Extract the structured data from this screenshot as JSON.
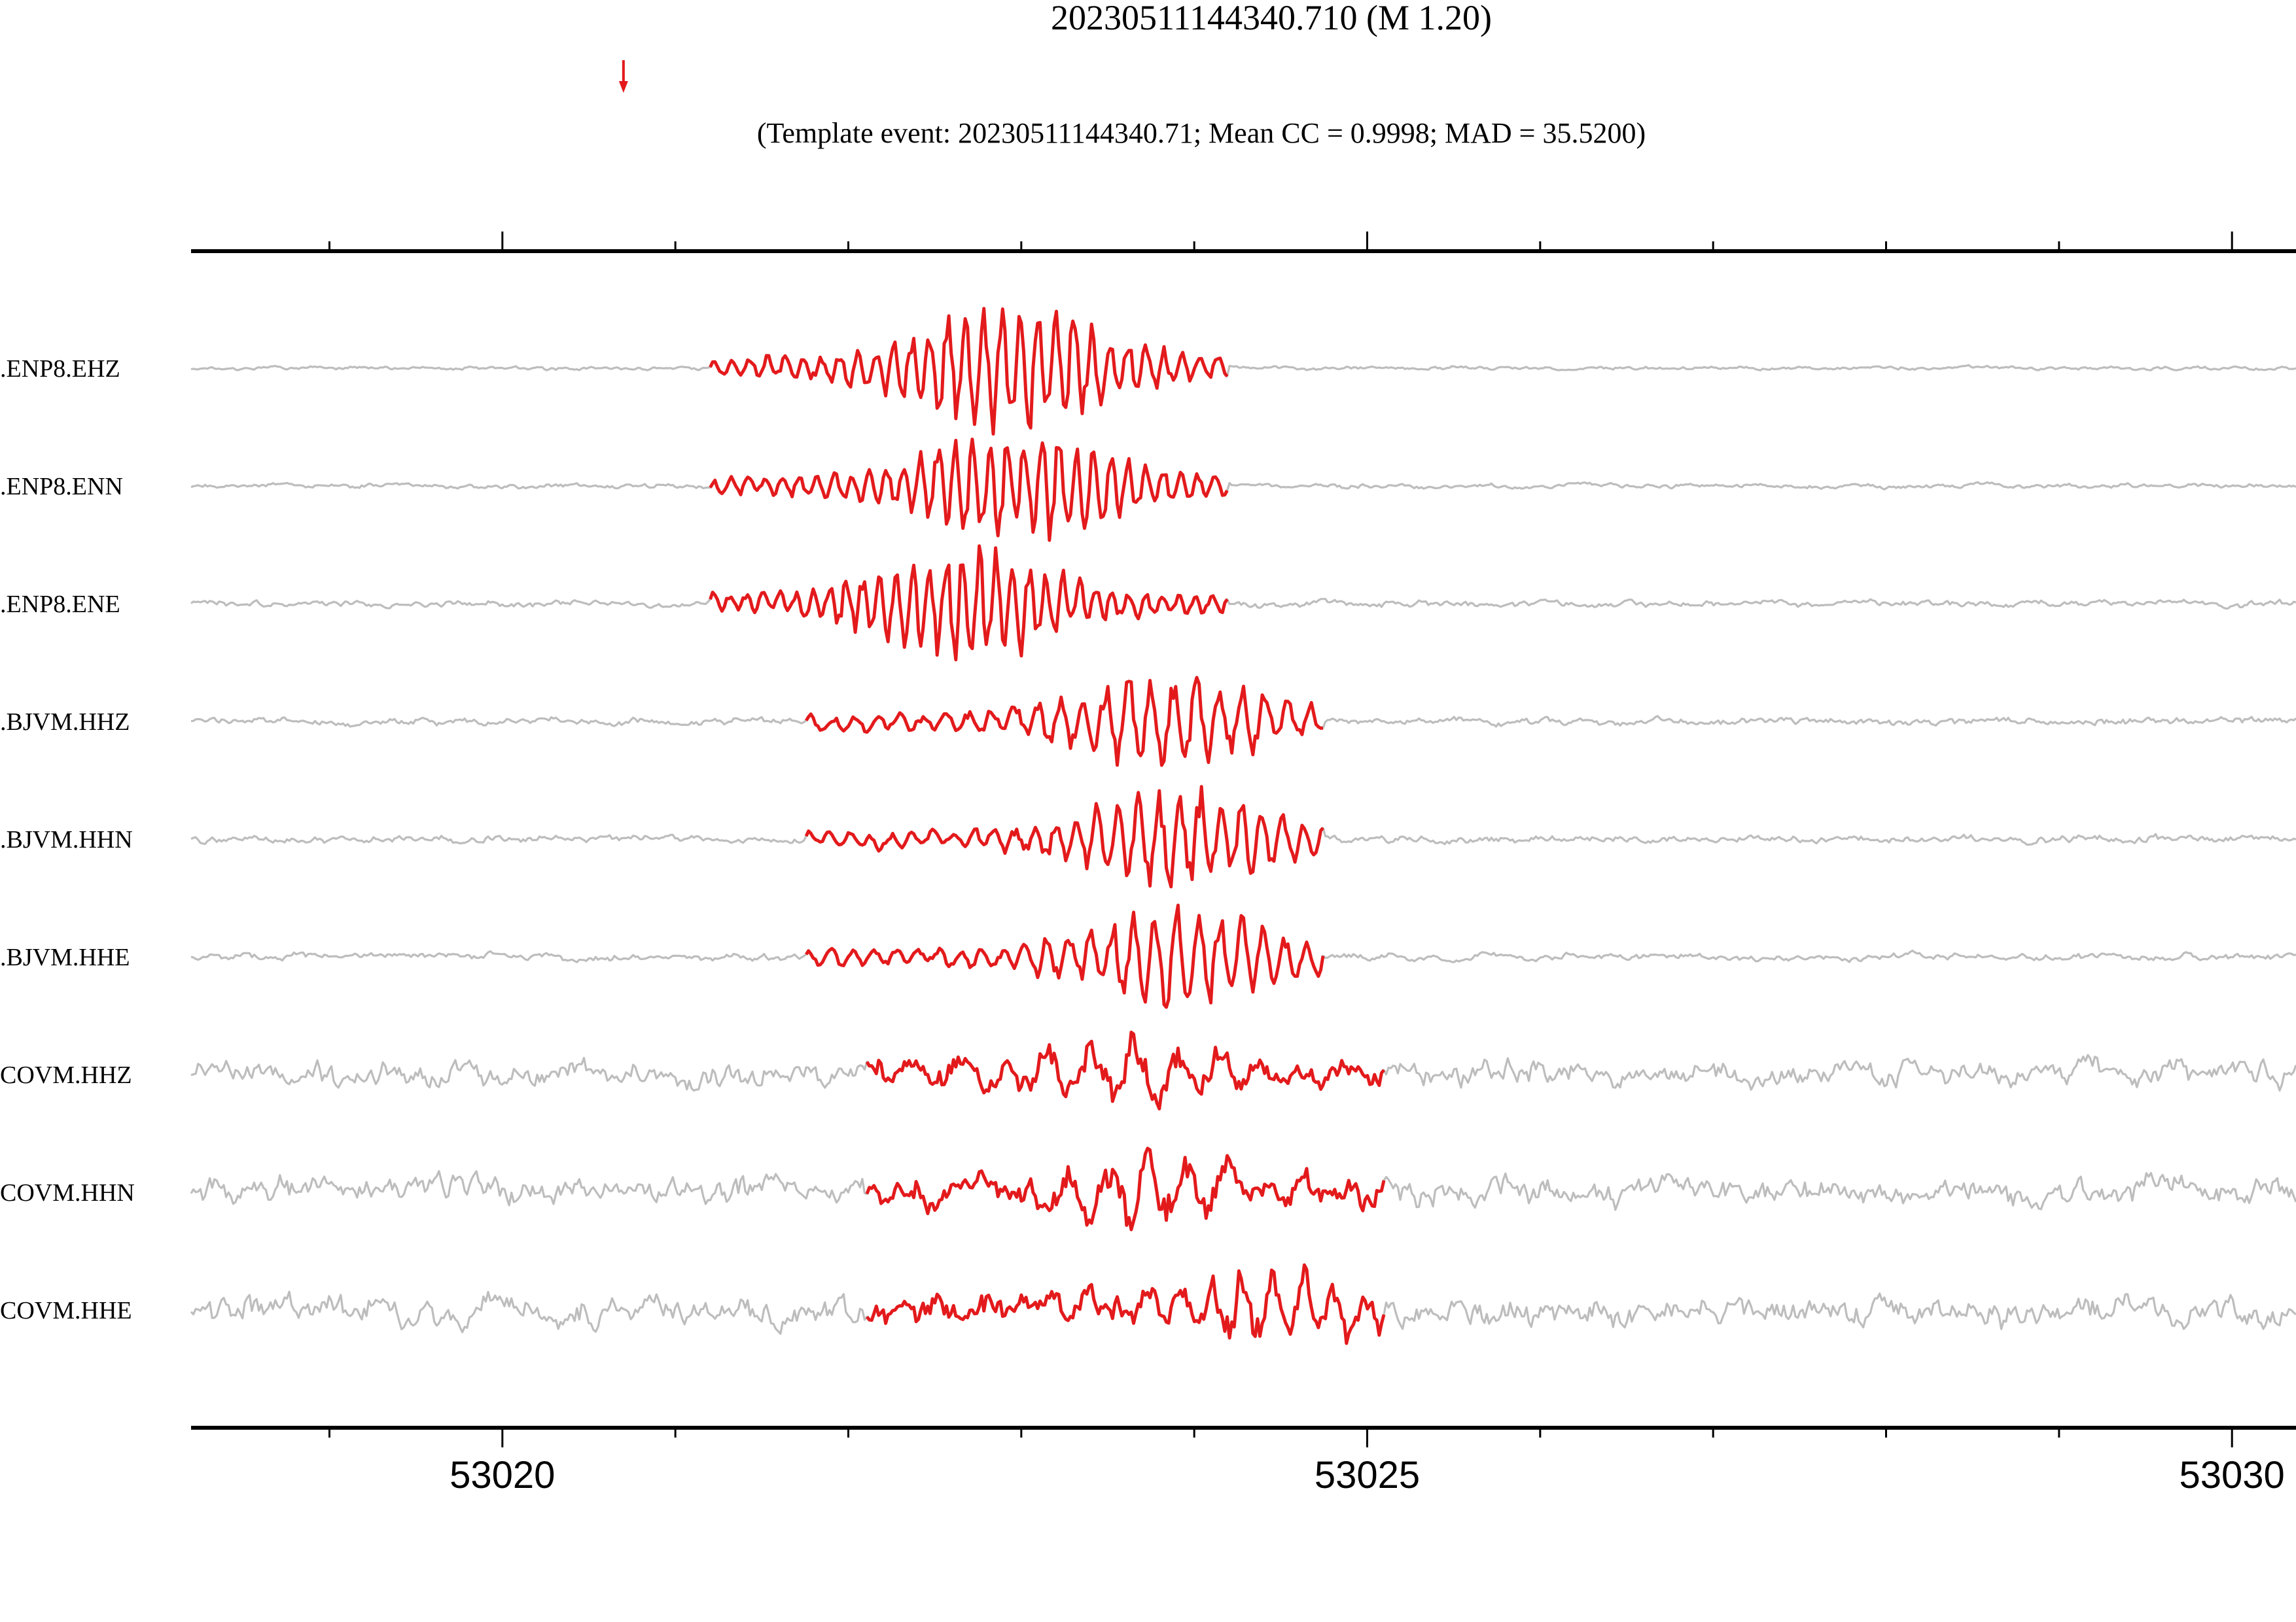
{
  "title": "20230511144340.710 (M 1.20)",
  "subtitle": "(Template event: 20230511144340.71; Mean CC = 0.9998; MAD = 35.5200)",
  "marker": {
    "time": 53020.7,
    "color": "#e31a1c",
    "icon": "down-arrow-icon"
  },
  "colors": {
    "background_trace": "#bdbdbd",
    "detection_trace": "#e31a1c",
    "axis": "#000000"
  },
  "chart_data": {
    "type": "line",
    "xlim": [
      53018.2,
      53030.37
    ],
    "major_ticks": [
      53020,
      53025,
      53030
    ],
    "minor_ticks": [
      53019,
      53021,
      53022,
      53023,
      53024,
      53026,
      53027,
      53028,
      53029
    ],
    "tick_labels": [
      "53020",
      "53025",
      "53030"
    ],
    "xlabel": "",
    "ylabel": "",
    "traces": [
      {
        "label": ".ENP8.EHZ",
        "window": [
          53021.2,
          53024.2
        ],
        "noise": 0.04,
        "amp": 1.0,
        "seed": 1,
        "freq": 2.4,
        "env_peak": 0.58
      },
      {
        "label": ".ENP8.ENN",
        "window": [
          53021.2,
          53024.2
        ],
        "noise": 0.05,
        "amp": 0.9,
        "seed": 2,
        "freq": 2.5,
        "env_peak": 0.6
      },
      {
        "label": ".ENP8.ENE",
        "window": [
          53021.2,
          53024.2
        ],
        "noise": 0.07,
        "amp": 0.85,
        "seed": 3,
        "freq": 2.6,
        "env_peak": 0.5
      },
      {
        "label": ".BJVM.HHZ",
        "window": [
          53021.75,
          53024.75
        ],
        "noise": 0.08,
        "amp": 0.75,
        "seed": 4,
        "freq": 1.9,
        "env_peak": 0.7
      },
      {
        "label": ".BJVM.HHN",
        "window": [
          53021.75,
          53024.75
        ],
        "noise": 0.08,
        "amp": 0.75,
        "seed": 5,
        "freq": 2.1,
        "env_peak": 0.72
      },
      {
        "label": ".BJVM.HHE",
        "window": [
          53021.75,
          53024.75
        ],
        "noise": 0.08,
        "amp": 0.75,
        "seed": 6,
        "freq": 2.0,
        "env_peak": 0.72
      },
      {
        "label": "COVM.HHZ",
        "window": [
          53022.1,
          53025.1
        ],
        "noise": 0.28,
        "amp": 0.55,
        "seed": 7,
        "freq": 1.0,
        "env_peak": 0.5
      },
      {
        "label": "COVM.HHN",
        "window": [
          53022.1,
          53025.1
        ],
        "noise": 0.3,
        "amp": 0.5,
        "seed": 8,
        "freq": 1.1,
        "env_peak": 0.55
      },
      {
        "label": "COVM.HHE",
        "window": [
          53022.1,
          53025.1
        ],
        "noise": 0.32,
        "amp": 0.6,
        "seed": 9,
        "freq": 1.4,
        "env_peak": 0.8
      }
    ]
  }
}
